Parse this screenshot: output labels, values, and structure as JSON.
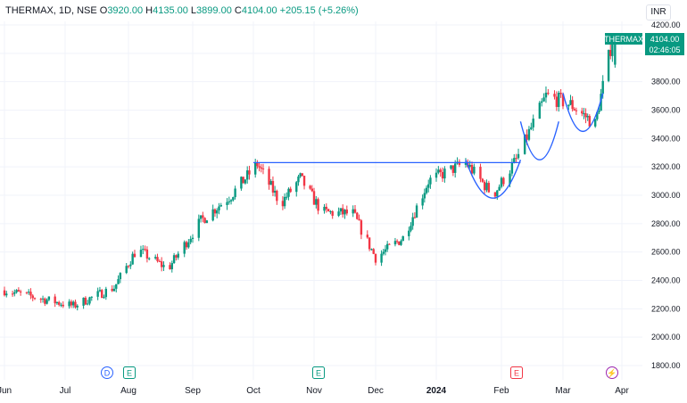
{
  "header": {
    "symbol": "THERMAX, 1D, NSE",
    "open_label": "O",
    "open": "3920.00",
    "high_label": "H",
    "high": "4135.00",
    "low_label": "L",
    "low": "3899.00",
    "close_label": "C",
    "close": "4104.00",
    "change": "+205.15 (+5.26%)"
  },
  "currency": "INR",
  "price_tag": {
    "symbol": "THERMAX",
    "price": "4104.00",
    "countdown": "02:46:05"
  },
  "colors": {
    "up": "#089981",
    "down": "#f23645",
    "annotation": "#2962ff",
    "grid": "#f0f3fa",
    "tag": "#089981"
  },
  "chart_data": {
    "type": "candlestick",
    "y_axis": {
      "ticks": [
        1800,
        2000,
        2200,
        2400,
        2600,
        2800,
        3000,
        3200,
        3400,
        3600,
        3800,
        4200
      ],
      "range": [
        1720,
        4320
      ]
    },
    "x_axis": {
      "labels": [
        "Jun",
        "Jul",
        "Aug",
        "Sep",
        "Oct",
        "Nov",
        "Dec",
        "2024",
        "Feb",
        "Mar",
        "Apr"
      ]
    },
    "grid": true,
    "candles_approx_monthly_path": [
      {
        "date": "2023-06",
        "price": 2330
      },
      {
        "date": "2023-07-05",
        "price": 2220
      },
      {
        "date": "2023-07-25",
        "price": 2350
      },
      {
        "date": "2023-08-05",
        "price": 2620
      },
      {
        "date": "2023-08-20",
        "price": 2480
      },
      {
        "date": "2023-09-05",
        "price": 2820
      },
      {
        "date": "2023-09-20",
        "price": 3000
      },
      {
        "date": "2023-10-03",
        "price": 3220
      },
      {
        "date": "2023-10-15",
        "price": 2940
      },
      {
        "date": "2023-10-25",
        "price": 3120
      },
      {
        "date": "2023-11-05",
        "price": 2880
      },
      {
        "date": "2023-11-20",
        "price": 2870
      },
      {
        "date": "2023-12-01",
        "price": 2560
      },
      {
        "date": "2023-12-15",
        "price": 2700
      },
      {
        "date": "2023-12-28",
        "price": 3100
      },
      {
        "date": "2024-01-15",
        "price": 3230
      },
      {
        "date": "2024-01-28",
        "price": 3000
      },
      {
        "date": "2024-02-08",
        "price": 3250
      },
      {
        "date": "2024-02-22",
        "price": 3700
      },
      {
        "date": "2024-03-05",
        "price": 3640
      },
      {
        "date": "2024-03-18",
        "price": 3500
      },
      {
        "date": "2024-03-27",
        "price": 4104
      }
    ],
    "annotations": [
      {
        "type": "horizontal-line",
        "price": 3230,
        "from": "2023-10-01",
        "to": "2024-02-10"
      },
      {
        "type": "cup",
        "from": "2024-01-15",
        "to": "2024-02-10",
        "bottom": 2950
      },
      {
        "type": "cup",
        "from": "2024-02-10",
        "to": "2024-02-28",
        "bottom": 3220
      },
      {
        "type": "cup",
        "from": "2024-03-01",
        "to": "2024-03-22",
        "bottom": 3420
      }
    ],
    "event_markers": [
      {
        "label": "D",
        "position": "Aug"
      },
      {
        "label": "E",
        "position": "Aug"
      },
      {
        "label": "E",
        "position": "Nov"
      },
      {
        "label": "E",
        "position": "Feb"
      },
      {
        "label": "⚡",
        "position": "Mar"
      }
    ]
  }
}
